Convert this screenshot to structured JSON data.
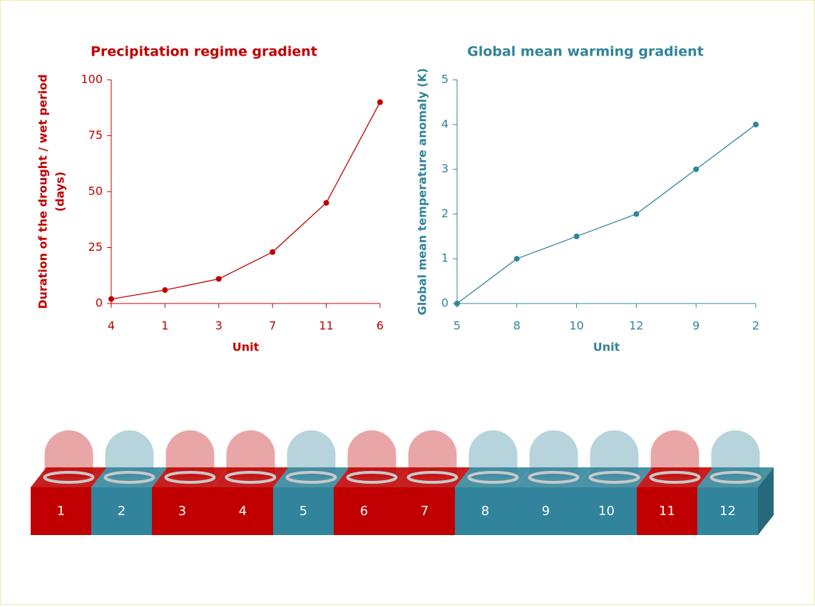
{
  "chart_data": [
    {
      "type": "line",
      "title": "Precipitation regime gradient",
      "color": "#c00000",
      "categories": [
        "4",
        "1",
        "3",
        "7",
        "11",
        "6"
      ],
      "values": [
        2,
        6,
        11,
        23,
        45,
        90
      ],
      "x_label": "Unit",
      "y_label": [
        "Duration of the drought / wet period",
        "(days)"
      ],
      "ylim": [
        0,
        100
      ],
      "yticks": [
        0,
        25,
        50,
        75,
        100
      ]
    },
    {
      "type": "line",
      "title": "Global mean warming gradient",
      "color": "#31849b",
      "categories": [
        "5",
        "8",
        "10",
        "12",
        "9",
        "2"
      ],
      "values": [
        0,
        1,
        1.5,
        2,
        3,
        4
      ],
      "x_label": "Unit",
      "y_label": [
        "Global mean temperature anomaly (K)"
      ],
      "ylim": [
        0,
        5
      ],
      "yticks": [
        0,
        1,
        2,
        3,
        4,
        5
      ]
    }
  ],
  "units": [
    {
      "label": "1",
      "color": "#c00000"
    },
    {
      "label": "2",
      "color": "#31849b"
    },
    {
      "label": "3",
      "color": "#c00000"
    },
    {
      "label": "4",
      "color": "#c00000"
    },
    {
      "label": "5",
      "color": "#31849b"
    },
    {
      "label": "6",
      "color": "#c00000"
    },
    {
      "label": "7",
      "color": "#c00000"
    },
    {
      "label": "8",
      "color": "#31849b"
    },
    {
      "label": "9",
      "color": "#31849b"
    },
    {
      "label": "10",
      "color": "#31849b"
    },
    {
      "label": "11",
      "color": "#c00000"
    },
    {
      "label": "12",
      "color": "#31849b"
    }
  ]
}
